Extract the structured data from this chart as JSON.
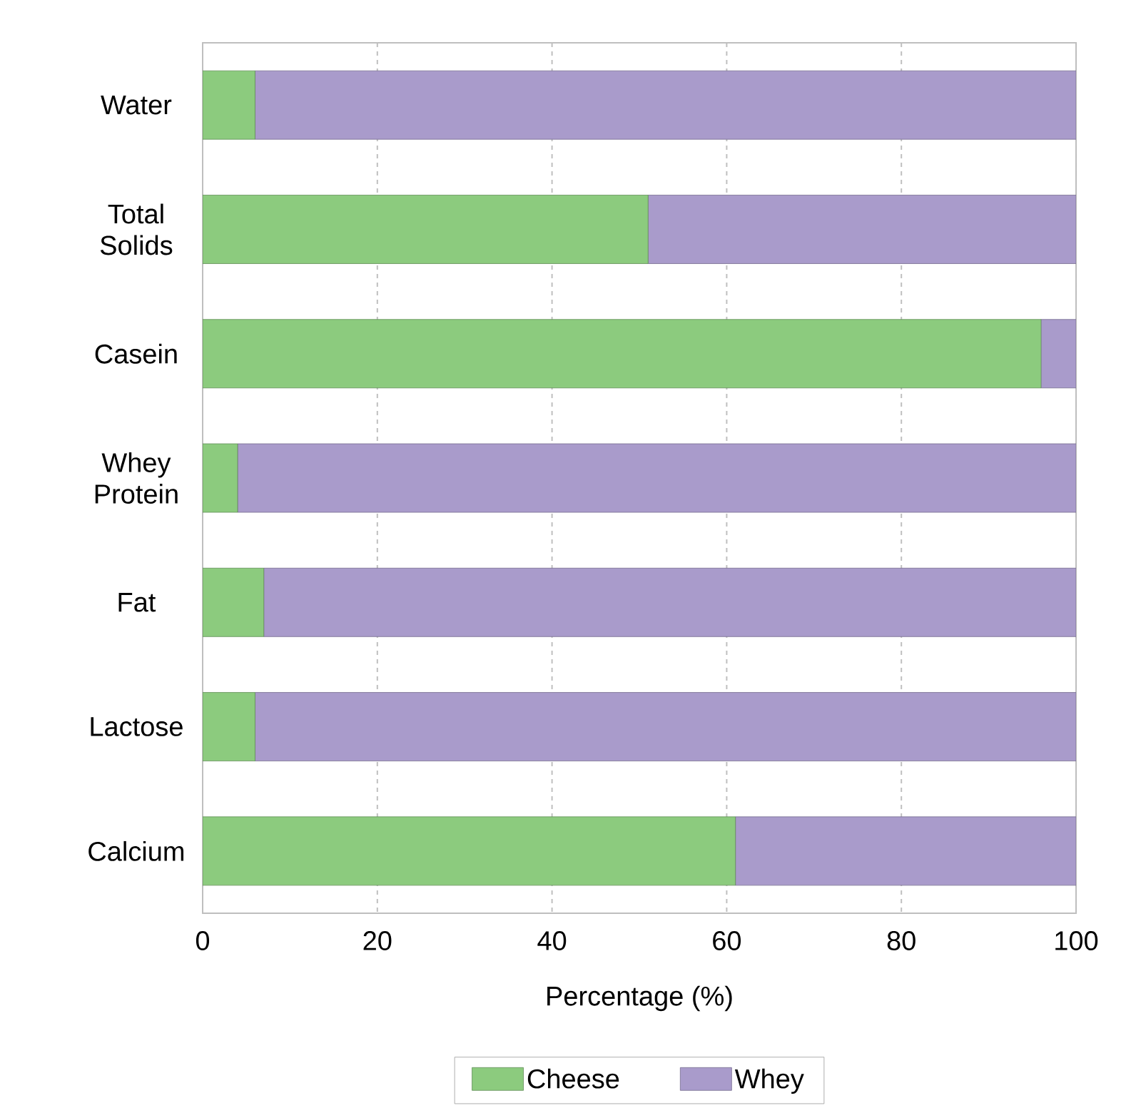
{
  "chart_data": {
    "type": "bar",
    "orientation": "horizontal",
    "stacked": true,
    "xlabel": "Percentage (%)",
    "categories": [
      "Water",
      "Total Solids",
      "Casein",
      "Whey Protein",
      "Fat",
      "Lactose",
      "Calcium"
    ],
    "series": [
      {
        "name": "Cheese",
        "color": "#8ccb7e",
        "values": [
          6,
          51,
          96,
          4,
          7,
          6,
          61
        ]
      },
      {
        "name": "Whey",
        "color": "#a99bcb",
        "values": [
          94,
          49,
          4,
          96,
          93,
          94,
          39
        ]
      }
    ],
    "xlim": [
      0,
      100
    ],
    "xticks": [
      0,
      20,
      40,
      60,
      80,
      100
    ],
    "grid": "x",
    "legend": "bottom"
  }
}
